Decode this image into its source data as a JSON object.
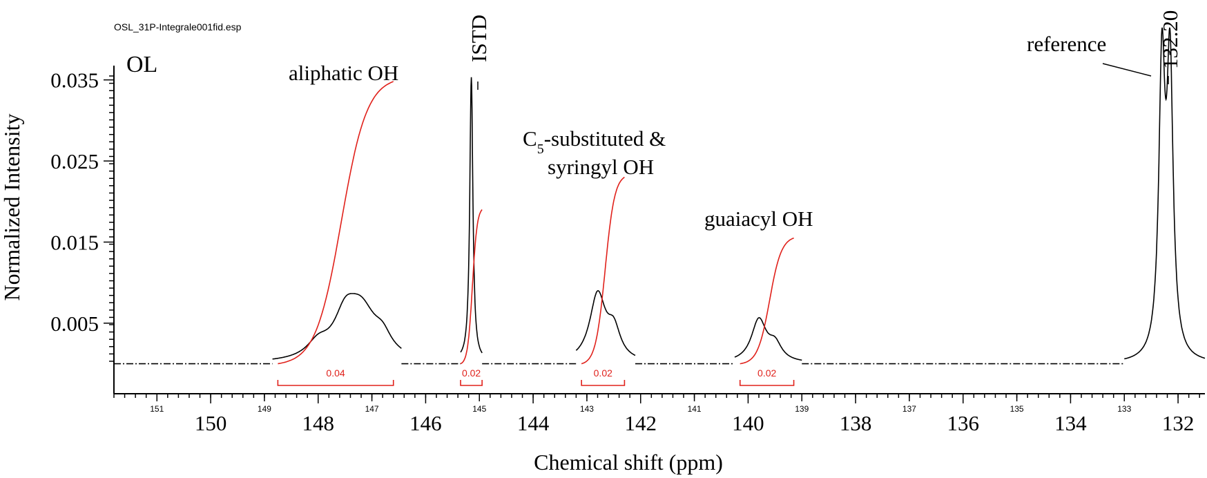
{
  "chart_data": {
    "type": "line",
    "file_label": "OSL_31P-Integrale001fid.esp",
    "sample_label": "OL",
    "xlabel": "Chemical shift (ppm)",
    "ylabel": "Normalized Intensity",
    "xlim": [
      151.8,
      131.5
    ],
    "ylim": [
      -0.0037,
      0.044
    ],
    "baseline": 0.0,
    "x_major_ticks": [
      150,
      148,
      146,
      144,
      142,
      140,
      138,
      136,
      134,
      132
    ],
    "x_minor_ticks": [
      151,
      149,
      147,
      145,
      143,
      141,
      139,
      137,
      135,
      133
    ],
    "y_ticks": [
      0.005,
      0.015,
      0.025,
      0.035
    ],
    "y_tick_labels": [
      "0.005",
      "0.015",
      "0.025",
      "0.035"
    ],
    "peaks": [
      {
        "center": 147.2,
        "height": 0.006,
        "width": 0.35
      },
      {
        "center": 147.5,
        "height": 0.0042,
        "width": 0.25
      },
      {
        "center": 148.0,
        "height": 0.0018,
        "width": 0.25
      },
      {
        "center": 146.8,
        "height": 0.002,
        "width": 0.2
      },
      {
        "center": 145.15,
        "height": 0.035,
        "width": 0.035
      },
      {
        "center": 142.8,
        "height": 0.0082,
        "width": 0.18
      },
      {
        "center": 142.5,
        "height": 0.0035,
        "width": 0.15
      },
      {
        "center": 139.8,
        "height": 0.0052,
        "width": 0.17
      },
      {
        "center": 139.5,
        "height": 0.002,
        "width": 0.15
      },
      {
        "center": 132.3,
        "height": 0.035,
        "width": 0.07
      },
      {
        "center": 132.15,
        "height": 0.035,
        "width": 0.07
      }
    ],
    "integrals": [
      {
        "label": "0.04",
        "from": 148.75,
        "to": 146.6,
        "start_y": 0.0,
        "end_y": 0.0348
      },
      {
        "label": "0.02",
        "from": 145.35,
        "to": 144.95,
        "start_y": 0.0,
        "end_y": 0.019
      },
      {
        "label": "0.02",
        "from": 143.1,
        "to": 142.3,
        "start_y": 0.0,
        "end_y": 0.023
      },
      {
        "label": "0.02",
        "from": 140.15,
        "to": 139.15,
        "start_y": 0.0,
        "end_y": 0.0155
      }
    ],
    "annotations": [
      {
        "text": "aliphatic OH"
      },
      {
        "text": "ISTD"
      },
      {
        "text_prefix": "C",
        "text_sub": "5",
        "text_rest": "-substituted &"
      },
      {
        "text": "syringyl OH"
      },
      {
        "text": "guaiacyl OH"
      },
      {
        "text": "reference"
      },
      {
        "text": "132.20"
      }
    ],
    "colors": {
      "spectrum": "#000000",
      "integral": "#e0201a"
    }
  }
}
